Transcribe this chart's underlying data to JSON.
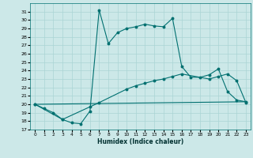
{
  "xlabel": "Humidex (Indice chaleur)",
  "xlim": [
    -0.5,
    23.5
  ],
  "ylim": [
    17,
    32
  ],
  "xticks": [
    0,
    1,
    2,
    3,
    4,
    5,
    6,
    7,
    8,
    9,
    10,
    11,
    12,
    13,
    14,
    15,
    16,
    17,
    18,
    19,
    20,
    21,
    22,
    23
  ],
  "yticks": [
    17,
    18,
    19,
    20,
    21,
    22,
    23,
    24,
    25,
    26,
    27,
    28,
    29,
    30,
    31
  ],
  "bg_color": "#cce8e8",
  "line_color": "#007070",
  "grid_color": "#aad4d4",
  "line1_x": [
    0,
    1,
    2,
    3,
    4,
    5,
    6,
    7,
    8,
    9,
    10,
    11,
    12,
    13,
    14,
    15,
    16,
    17,
    18,
    19,
    20,
    21,
    22,
    23
  ],
  "line1_y": [
    20,
    19.5,
    19.0,
    18.2,
    17.8,
    17.7,
    19.2,
    31.2,
    27.2,
    28.5,
    29.0,
    29.2,
    29.5,
    29.3,
    29.2,
    30.2,
    24.5,
    23.2,
    23.2,
    23.5,
    24.2,
    21.5,
    20.5,
    20.3
  ],
  "line2_x": [
    0,
    3,
    6,
    7,
    10,
    11,
    12,
    13,
    14,
    15,
    16,
    19,
    20,
    21,
    22,
    23
  ],
  "line2_y": [
    20,
    18.2,
    19.7,
    20.2,
    21.8,
    22.2,
    22.5,
    22.8,
    23.0,
    23.3,
    23.6,
    23.0,
    23.3,
    23.6,
    22.8,
    20.2
  ],
  "line3_x": [
    0,
    23
  ],
  "line3_y": [
    20.0,
    20.3
  ]
}
